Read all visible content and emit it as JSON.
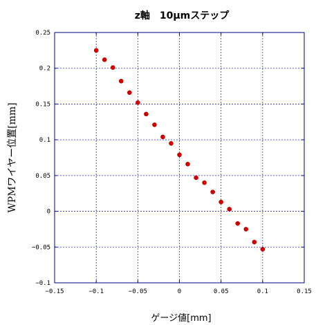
{
  "chart_data": {
    "type": "scatter",
    "title": "z軸　10μmステップ",
    "xlabel": "ゲージ値[mm]",
    "ylabel": "WPMワイヤー位置[mm]",
    "xlim": [
      -0.15,
      0.15
    ],
    "ylim": [
      -0.1,
      0.25
    ],
    "x_ticks": [
      -0.15,
      -0.1,
      -0.05,
      0,
      0.05,
      0.1,
      0.15
    ],
    "x_tick_labels": [
      "−0.15",
      "−0.1",
      "−0.05",
      "0",
      "0.05",
      "0.1",
      "0.15"
    ],
    "y_ticks": [
      -0.1,
      -0.05,
      0,
      0.05,
      0.1,
      0.15,
      0.2,
      0.25
    ],
    "y_tick_labels": [
      "−0.1",
      "−0.05",
      "0",
      "0.05",
      "0.1",
      "0.15",
      "0.2",
      "0.25"
    ],
    "grid": true,
    "marker_color": "#cc0000",
    "grid_color": "#2a2ad6",
    "series": [
      {
        "x": [
          -0.1,
          -0.09,
          -0.08,
          -0.07,
          -0.06,
          -0.05,
          -0.04,
          -0.03,
          -0.02,
          -0.01,
          0,
          0.01,
          0.02,
          0.03,
          0.04,
          0.05,
          0.06,
          0.07,
          0.08,
          0.09,
          0.1
        ],
        "y": [
          0.225,
          0.212,
          0.201,
          0.182,
          0.166,
          0.152,
          0.136,
          0.121,
          0.104,
          0.095,
          0.079,
          0.066,
          0.047,
          0.04,
          0.027,
          0.013,
          0.003,
          -0.017,
          -0.025,
          -0.043,
          -0.053
        ]
      }
    ]
  }
}
